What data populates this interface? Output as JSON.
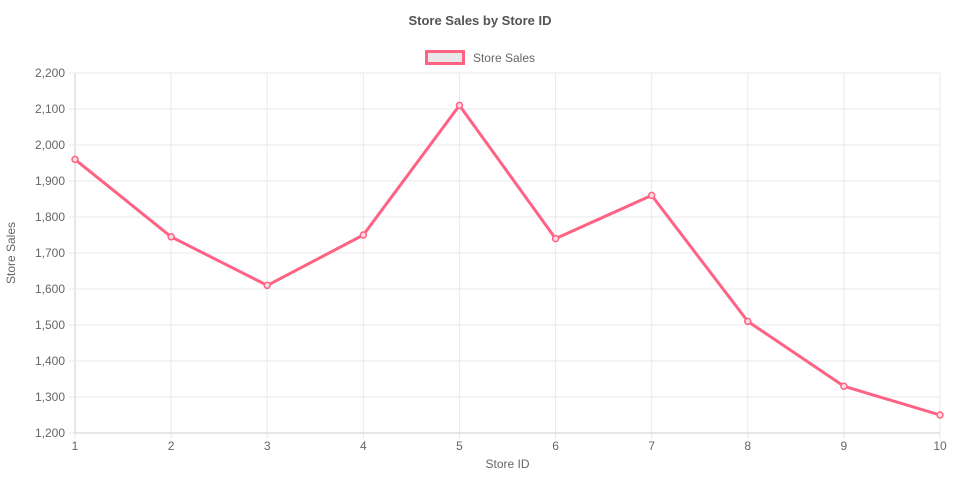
{
  "chart_data": {
    "type": "line",
    "title": "Store Sales by Store ID",
    "legend_label": "Store Sales",
    "legend_position": "top",
    "xlabel": "Store ID",
    "ylabel": "Store Sales",
    "x": [
      1,
      2,
      3,
      4,
      5,
      6,
      7,
      8,
      9,
      10
    ],
    "series": [
      {
        "name": "Store Sales",
        "values": [
          1960,
          1745,
          1610,
          1750,
          2110,
          1740,
          1860,
          1510,
          1330,
          1250
        ]
      }
    ],
    "ylim": [
      1200,
      2200
    ],
    "ytick_step": 100,
    "ytick_labels": [
      "1,200",
      "1,300",
      "1,400",
      "1,500",
      "1,600",
      "1,700",
      "1,800",
      "1,900",
      "2,000",
      "2,100",
      "2,200"
    ],
    "grid": true,
    "colors": {
      "line": "#ff6384",
      "point_fill": "#f7dbe2",
      "legend_fill": "#e8e8e8",
      "grid": "#eaeaea",
      "axis_line": "#cfcfcf",
      "tick_text": "#666666",
      "axis_title_text": "#666666",
      "title_text": "#545454"
    }
  }
}
